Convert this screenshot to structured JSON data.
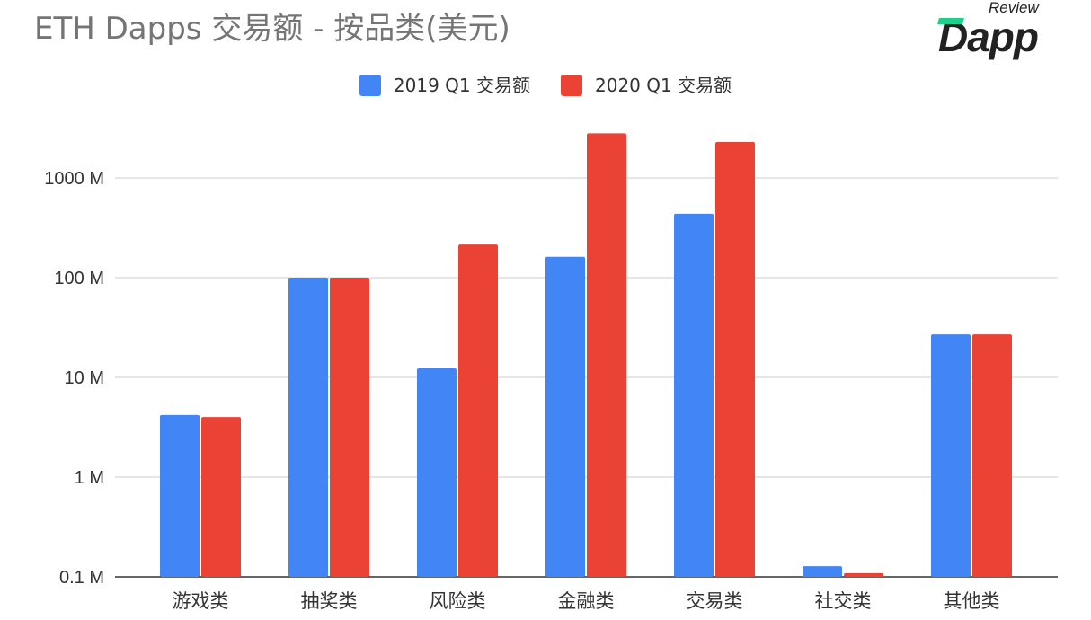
{
  "chart_data": {
    "type": "bar",
    "title": "ETH Dapps 交易额 - 按品类(美元)",
    "yscale": "log",
    "ylim": [
      0.1,
      10000
    ],
    "yunit": "M",
    "ytick_values": [
      0.1,
      1,
      10,
      100,
      1000
    ],
    "yticks": [
      "0.1 M",
      "1 M",
      "10 M",
      "100 M",
      "1000 M"
    ],
    "grid": true,
    "legend_position": "top",
    "categories": [
      "游戏类",
      "抽奖类",
      "风险类",
      "金融类",
      "交易类",
      "社交类",
      "其他类"
    ],
    "series": [
      {
        "name": "2019 Q1 交易额",
        "color": "#4285f4",
        "values": [
          4.2,
          100,
          12.3,
          162,
          437,
          0.128,
          27
        ]
      },
      {
        "name": "2020 Q1  交易额",
        "color": "#ea4335",
        "values": [
          4.0,
          100,
          215,
          2800,
          2290,
          0.109,
          27
        ]
      }
    ]
  },
  "logo": {
    "top": "Review",
    "main": "Dapp"
  }
}
